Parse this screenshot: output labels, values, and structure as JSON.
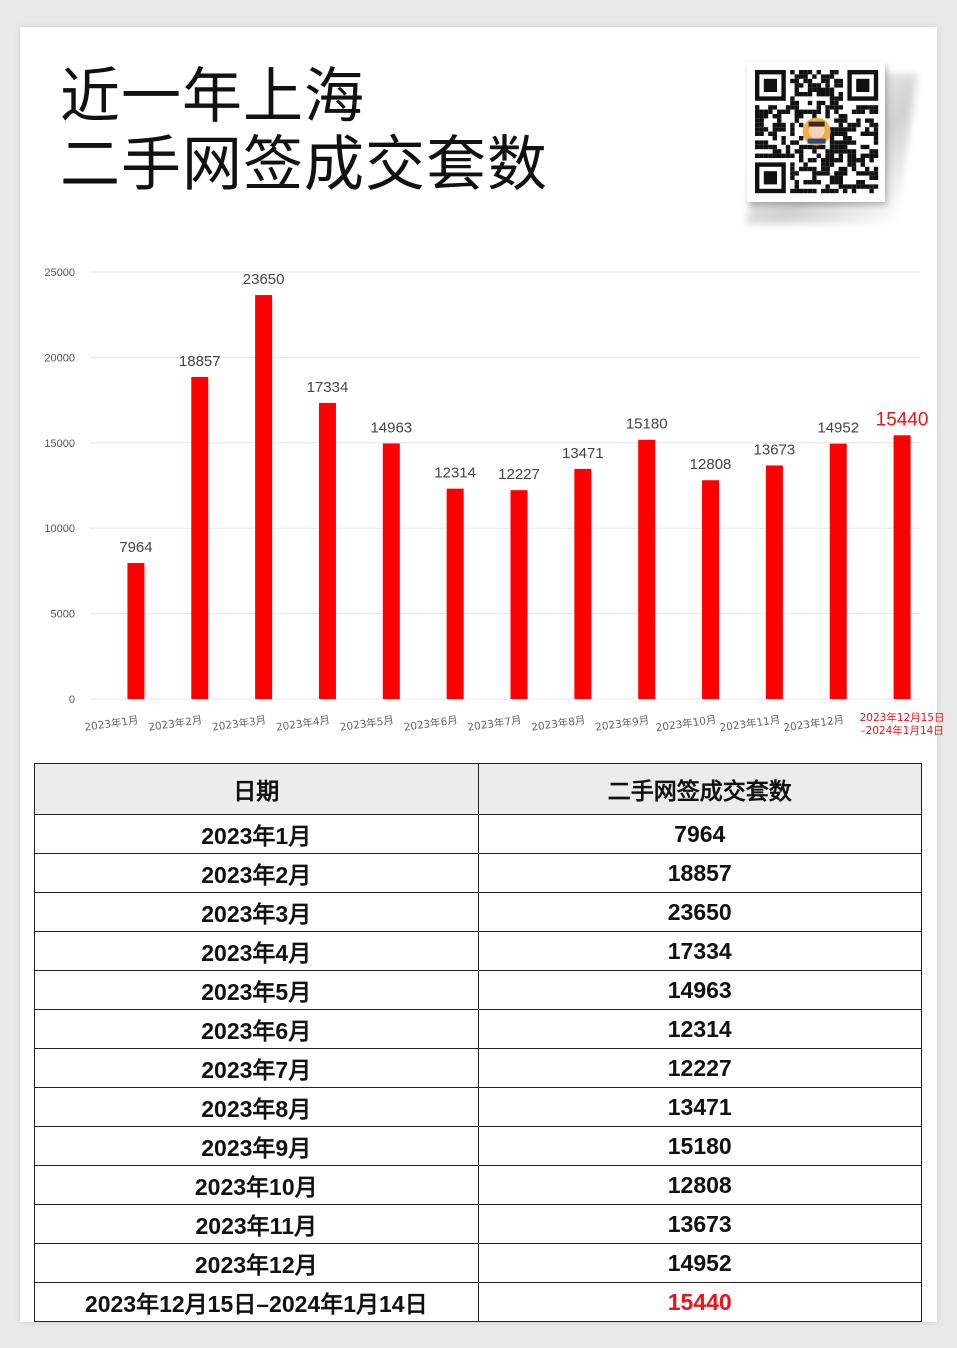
{
  "title_lines": [
    "近一年上海",
    "二手网签成交套数"
  ],
  "colors": {
    "bar": "#ff0000",
    "highlight": "#e8141b",
    "grid": "#e6e6e6",
    "label": "#444444"
  },
  "chart_data": {
    "type": "bar",
    "categories": [
      "2023年1月",
      "2023年2月",
      "2023年3月",
      "2023年4月",
      "2023年5月",
      "2023年6月",
      "2023年7月",
      "2023年8月",
      "2023年9月",
      "2023年10月",
      "2023年11月",
      "2023年12月",
      "2023年12月15日–2024年1月14日"
    ],
    "category_tick_lines": [
      [
        "2023年1月"
      ],
      [
        "2023年2月"
      ],
      [
        "2023年3月"
      ],
      [
        "2023年4月"
      ],
      [
        "2023年5月"
      ],
      [
        "2023年6月"
      ],
      [
        "2023年7月"
      ],
      [
        "2023年8月"
      ],
      [
        "2023年9月"
      ],
      [
        "2023年10月"
      ],
      [
        "2023年11月"
      ],
      [
        "2023年12月"
      ],
      [
        "2023年12月15日",
        "–2024年1月14日"
      ]
    ],
    "values": [
      7964,
      18857,
      23650,
      17334,
      14963,
      12314,
      12227,
      13471,
      15180,
      12808,
      13673,
      14952,
      15440
    ],
    "y_ticks": [
      0,
      5000,
      10000,
      15000,
      20000,
      25000
    ],
    "ylim": [
      0,
      25000
    ],
    "highlight_index": 12,
    "grid": true,
    "data_labels": true,
    "legend": false
  },
  "table": {
    "headers": [
      "日期",
      "二手网签成交套数"
    ],
    "rows": [
      [
        "2023年1月",
        "7964"
      ],
      [
        "2023年2月",
        "18857"
      ],
      [
        "2023年3月",
        "23650"
      ],
      [
        "2023年4月",
        "17334"
      ],
      [
        "2023年5月",
        "14963"
      ],
      [
        "2023年6月",
        "12314"
      ],
      [
        "2023年7月",
        "12227"
      ],
      [
        "2023年8月",
        "13471"
      ],
      [
        "2023年9月",
        "15180"
      ],
      [
        "2023年10月",
        "12808"
      ],
      [
        "2023年11月",
        "13673"
      ],
      [
        "2023年12月",
        "14952"
      ],
      [
        "2023年12月15日–2024年1月14日",
        "15440"
      ]
    ],
    "highlight_row": 12
  }
}
